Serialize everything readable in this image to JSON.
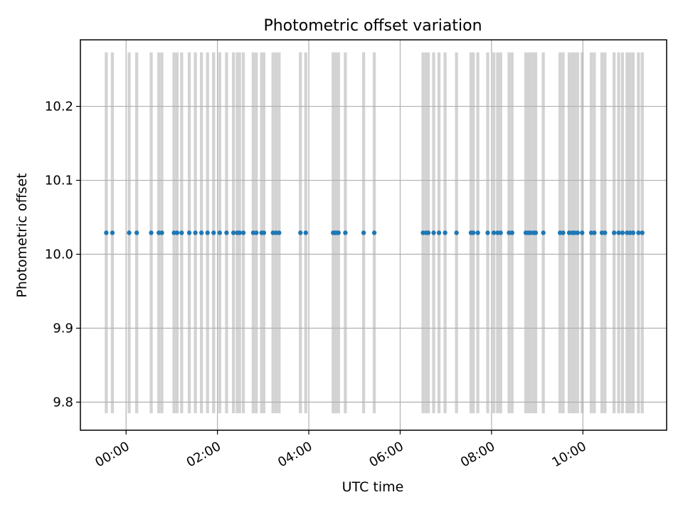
{
  "chart_data": {
    "type": "scatter",
    "title": "Photometric offset variation",
    "xlabel": "UTC time",
    "ylabel": "Photometric offset",
    "x_is_time": true,
    "xlim": [
      "-01:00",
      "11:50"
    ],
    "ylim": [
      9.762,
      10.29
    ],
    "x_ticks": [
      "00:00",
      "02:00",
      "04:00",
      "06:00",
      "08:00",
      "10:00"
    ],
    "y_ticks": [
      "9.8",
      "9.9",
      "10.0",
      "10.1",
      "10.2"
    ],
    "grid": true,
    "colors": {
      "points": "#1f77b4",
      "bands": "#d3d3d3",
      "grid": "#b0b0b0"
    },
    "bands": {
      "y_range": [
        9.785,
        10.273
      ],
      "duration_minutes": 4
    },
    "series": [
      {
        "y": 10.029,
        "x": [
          "-00:26",
          "-00:18",
          "00:04",
          "00:14",
          "00:33",
          "00:43",
          "00:47",
          "01:03",
          "01:07",
          "01:13",
          "01:23",
          "01:31",
          "01:39",
          "01:47",
          "01:55",
          "02:03",
          "02:12",
          "02:21",
          "02:26",
          "02:29",
          "02:34",
          "02:47",
          "02:51",
          "02:58",
          "03:01",
          "03:13",
          "03:17",
          "03:21",
          "03:49",
          "03:56",
          "04:32",
          "04:34",
          "04:36",
          "04:39",
          "04:48",
          "05:12",
          "05:26",
          "06:30",
          "06:34",
          "06:37",
          "06:44",
          "06:51",
          "06:59",
          "07:14",
          "07:33",
          "07:36",
          "07:42",
          "07:55",
          "08:03",
          "08:08",
          "08:12",
          "08:23",
          "08:27",
          "08:45",
          "08:48",
          "08:51",
          "08:55",
          "08:58",
          "09:08",
          "09:30",
          "09:34",
          "09:42",
          "09:46",
          "09:49",
          "09:53",
          "09:59",
          "10:11",
          "10:15",
          "10:25",
          "10:29",
          "10:41",
          "10:47",
          "10:52",
          "10:58",
          "11:02",
          "11:06",
          "11:13",
          "11:18"
        ]
      }
    ]
  }
}
